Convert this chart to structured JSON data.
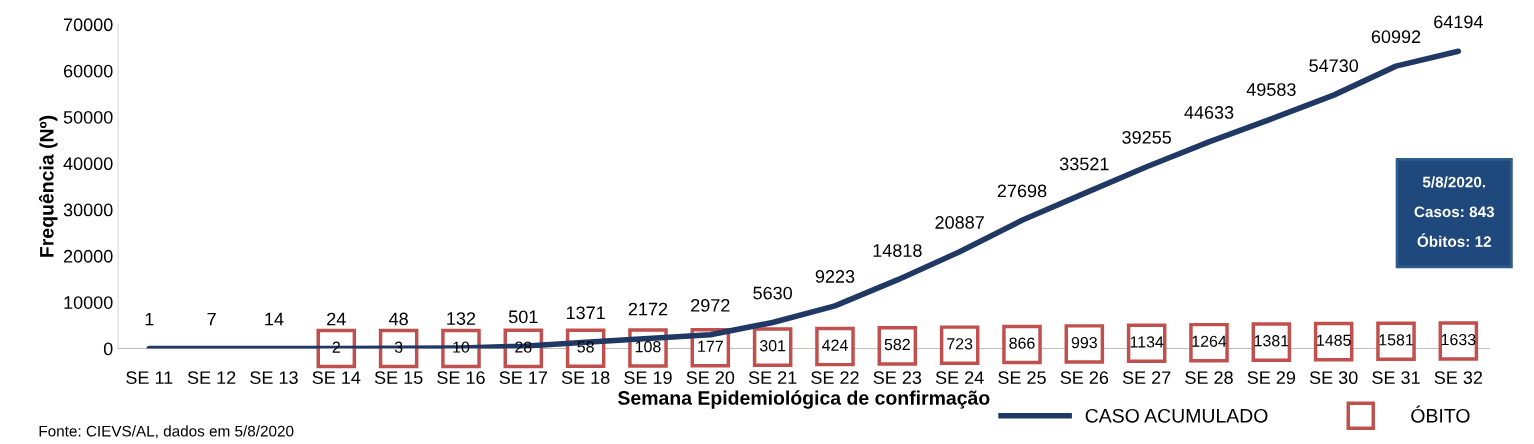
{
  "chart_data": {
    "type": "line",
    "xlabel": "Semana Epidemiológica de confirmação",
    "ylabel": "Frequência (Nº)",
    "categories": [
      "SE 11",
      "SE 12",
      "SE 13",
      "SE 14",
      "SE 15",
      "SE 16",
      "SE 17",
      "SE 18",
      "SE 19",
      "SE 20",
      "SE 21",
      "SE 22",
      "SE 23",
      "SE 24",
      "SE 25",
      "SE 26",
      "SE 27",
      "SE 28",
      "SE 29",
      "SE 30",
      "SE 31",
      "SE 32"
    ],
    "series": [
      {
        "name": "CASO ACUMULADO",
        "color": "#203864",
        "values": [
          1,
          7,
          14,
          24,
          48,
          132,
          501,
          1371,
          2172,
          2972,
          5630,
          9223,
          14818,
          20887,
          27698,
          33521,
          39255,
          44633,
          49583,
          54730,
          60992,
          64194
        ]
      },
      {
        "name": "ÓBITO",
        "type": "scatter",
        "marker": "square",
        "color": "#c0504d",
        "values": [
          null,
          null,
          null,
          2,
          3,
          10,
          28,
          58,
          108,
          177,
          301,
          424,
          582,
          723,
          866,
          993,
          1134,
          1264,
          1381,
          1485,
          1581,
          1633
        ]
      }
    ],
    "ylim": [
      0,
      70000
    ],
    "yticks": [
      0,
      10000,
      20000,
      30000,
      40000,
      50000,
      60000,
      70000
    ],
    "data_labels": true,
    "grid": false,
    "legend": "bottom right",
    "annotations": [
      "Fonte: CIEVS/AL, dados em 5/8/2020",
      "5/8/2020.\nCasos: 843\nÓbitos: 12"
    ]
  }
}
